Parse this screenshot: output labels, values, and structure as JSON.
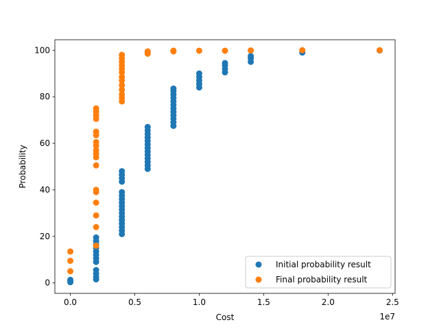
{
  "chart_data": {
    "type": "scatter",
    "xlabel": "Cost",
    "ylabel": "Probability",
    "x_offset_label": "1e7",
    "xlim": [
      -1200000,
      25200000
    ],
    "ylim": [
      -4.5,
      104.5
    ],
    "x_ticks": [
      0,
      5000000,
      10000000,
      15000000,
      20000000,
      25000000
    ],
    "x_tick_labels": [
      "0.0",
      "0.5",
      "1.0",
      "1.5",
      "2.0",
      "2.5"
    ],
    "y_ticks": [
      0,
      20,
      40,
      60,
      80,
      100
    ],
    "y_tick_labels": [
      "0",
      "20",
      "40",
      "60",
      "80",
      "100"
    ],
    "grid": false,
    "legend_position": "lower-right",
    "series": [
      {
        "name": "Initial probability result",
        "color": "#1f77b4",
        "points": [
          [
            0,
            0.3
          ],
          [
            0,
            0.8
          ],
          [
            0,
            1.3
          ],
          [
            2000000,
            1.5
          ],
          [
            2000000,
            2.5
          ],
          [
            2000000,
            4
          ],
          [
            2000000,
            5.5
          ],
          [
            2000000,
            9
          ],
          [
            2000000,
            10.5
          ],
          [
            2000000,
            12
          ],
          [
            2000000,
            13.5
          ],
          [
            2000000,
            15
          ],
          [
            2000000,
            16.5
          ],
          [
            2000000,
            18
          ],
          [
            2000000,
            19.5
          ],
          [
            4000000,
            21
          ],
          [
            4000000,
            22.5
          ],
          [
            4000000,
            24
          ],
          [
            4000000,
            25.5
          ],
          [
            4000000,
            27
          ],
          [
            4000000,
            28.5
          ],
          [
            4000000,
            30
          ],
          [
            4000000,
            31.5
          ],
          [
            4000000,
            33
          ],
          [
            4000000,
            34.5
          ],
          [
            4000000,
            36
          ],
          [
            4000000,
            37.5
          ],
          [
            4000000,
            39
          ],
          [
            4000000,
            43.5
          ],
          [
            4000000,
            45
          ],
          [
            4000000,
            46.5
          ],
          [
            4000000,
            48
          ],
          [
            6000000,
            49
          ],
          [
            6000000,
            50.5
          ],
          [
            6000000,
            52
          ],
          [
            6000000,
            53.5
          ],
          [
            6000000,
            55
          ],
          [
            6000000,
            56.5
          ],
          [
            6000000,
            58
          ],
          [
            6000000,
            59.5
          ],
          [
            6000000,
            61
          ],
          [
            6000000,
            62.5
          ],
          [
            6000000,
            64
          ],
          [
            6000000,
            65.5
          ],
          [
            6000000,
            67
          ],
          [
            8000000,
            67.5
          ],
          [
            8000000,
            69
          ],
          [
            8000000,
            70.5
          ],
          [
            8000000,
            72
          ],
          [
            8000000,
            73.5
          ],
          [
            8000000,
            75
          ],
          [
            8000000,
            76.5
          ],
          [
            8000000,
            78
          ],
          [
            8000000,
            79.5
          ],
          [
            8000000,
            81
          ],
          [
            8000000,
            82.5
          ],
          [
            8000000,
            83.5
          ],
          [
            10000000,
            84
          ],
          [
            10000000,
            85.5
          ],
          [
            10000000,
            87
          ],
          [
            10000000,
            88.5
          ],
          [
            10000000,
            90
          ],
          [
            12000000,
            90.5
          ],
          [
            12000000,
            92
          ],
          [
            12000000,
            93.5
          ],
          [
            12000000,
            94.5
          ],
          [
            14000000,
            95
          ],
          [
            14000000,
            96.5
          ],
          [
            14000000,
            97.5
          ],
          [
            18000000,
            99
          ],
          [
            24000000,
            99.9
          ]
        ]
      },
      {
        "name": "Final probability result",
        "color": "#ff7f0e",
        "points": [
          [
            0,
            5
          ],
          [
            0,
            9.5
          ],
          [
            0,
            13.5
          ],
          [
            2000000,
            16
          ],
          [
            2000000,
            24
          ],
          [
            2000000,
            29
          ],
          [
            2000000,
            34.5
          ],
          [
            2000000,
            39
          ],
          [
            2000000,
            40
          ],
          [
            2000000,
            50.5
          ],
          [
            2000000,
            54
          ],
          [
            2000000,
            55.5
          ],
          [
            2000000,
            57
          ],
          [
            2000000,
            59
          ],
          [
            2000000,
            60.5
          ],
          [
            2000000,
            63.5
          ],
          [
            2000000,
            65
          ],
          [
            2000000,
            70.5
          ],
          [
            2000000,
            72
          ],
          [
            2000000,
            73.5
          ],
          [
            2000000,
            75
          ],
          [
            4000000,
            78
          ],
          [
            4000000,
            79.5
          ],
          [
            4000000,
            81
          ],
          [
            4000000,
            83
          ],
          [
            4000000,
            85
          ],
          [
            4000000,
            87
          ],
          [
            4000000,
            88.5
          ],
          [
            4000000,
            90.5
          ],
          [
            4000000,
            92
          ],
          [
            4000000,
            93.5
          ],
          [
            4000000,
            95
          ],
          [
            4000000,
            96.5
          ],
          [
            4000000,
            98
          ],
          [
            6000000,
            98.5
          ],
          [
            6000000,
            99
          ],
          [
            6000000,
            99.5
          ],
          [
            8000000,
            99.5
          ],
          [
            8000000,
            99.8
          ],
          [
            10000000,
            99.8
          ],
          [
            12000000,
            99.8
          ],
          [
            14000000,
            99.9
          ],
          [
            18000000,
            100
          ],
          [
            24000000,
            100
          ]
        ]
      }
    ]
  }
}
